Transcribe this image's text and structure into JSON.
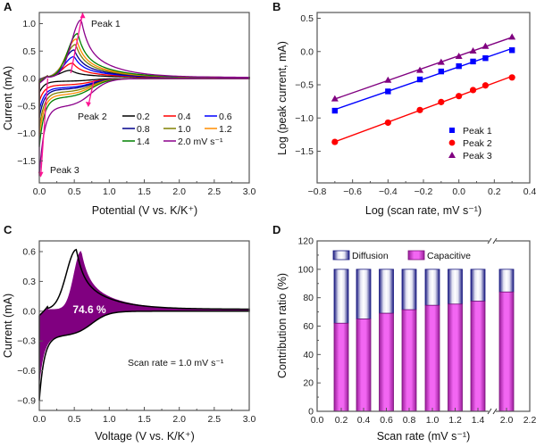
{
  "chart_data": [
    {
      "panel": "A",
      "type": "line",
      "title": "",
      "xlabel": "Potential (V vs. K/K⁺)",
      "ylabel": "Current (mA)",
      "xlim": [
        0.0,
        3.0
      ],
      "ylim": [
        -1.85,
        1.2
      ],
      "xticks": [
        "0.0",
        "0.5",
        "1.0",
        "1.5",
        "2.0",
        "2.5",
        "3.0"
      ],
      "yticks": [
        "1.0",
        "0.5",
        "0.0",
        "−0.5",
        "−1.0",
        "−1.5"
      ],
      "legend": {
        "placement": "middle-right",
        "columns": 3
      },
      "series": [
        {
          "name": "0.2",
          "color": "#000000",
          "anodic_peak": [
            0.45,
            0.13
          ],
          "cathodic_plateau": -0.05,
          "min_at_0": -0.26
        },
        {
          "name": "0.4",
          "color": "#ff0000",
          "anodic_peak": [
            0.48,
            0.26
          ],
          "cathodic_plateau": -0.12,
          "min_at_0": -0.42
        },
        {
          "name": "0.6",
          "color": "#0000ff",
          "anodic_peak": [
            0.5,
            0.38
          ],
          "cathodic_plateau": -0.17,
          "min_at_0": -0.58
        },
        {
          "name": "0.8",
          "color": "#00008b",
          "anodic_peak": [
            0.5,
            0.5
          ],
          "cathodic_plateau": -0.2,
          "min_at_0": -0.72
        },
        {
          "name": "1.0",
          "color": "#808000",
          "anodic_peak": [
            0.52,
            0.6
          ],
          "cathodic_plateau": -0.25,
          "min_at_0": -0.9
        },
        {
          "name": "1.2",
          "color": "#ff8c00",
          "anodic_peak": [
            0.53,
            0.7
          ],
          "cathodic_plateau": -0.3,
          "min_at_0": -1.05
        },
        {
          "name": "1.4",
          "color": "#008000",
          "anodic_peak": [
            0.55,
            0.8
          ],
          "cathodic_plateau": -0.35,
          "min_at_0": -1.25
        },
        {
          "name": "2.0 mV s⁻¹",
          "color": "#8b008b",
          "anodic_peak": [
            0.6,
            1.05
          ],
          "cathodic_plateau": -0.52,
          "min_at_0": -1.78
        }
      ],
      "annotations": [
        "Peak 1",
        "Peak 2",
        "Peak 3"
      ],
      "arrow_color": "#ff1493"
    },
    {
      "panel": "B",
      "type": "scatter",
      "title": "",
      "xlabel": "Log (scan rate, mV s⁻¹)",
      "ylabel": "Log (peak current, mA)",
      "xlim": [
        -0.8,
        0.4
      ],
      "ylim": [
        -1.95,
        0.6
      ],
      "xticks": [
        "−0.8",
        "−0.6",
        "−0.4",
        "−0.2",
        "0.0",
        "0.2",
        "0.4"
      ],
      "yticks": [
        "0.5",
        "0.0",
        "−0.5",
        "−1.0",
        "−1.5"
      ],
      "x": [
        -0.7,
        -0.4,
        -0.22,
        -0.1,
        0.0,
        0.08,
        0.15,
        0.3
      ],
      "series": [
        {
          "name": "Peak 1",
          "marker": "square",
          "color": "#0000ff",
          "values": [
            -0.89,
            -0.6,
            -0.42,
            -0.3,
            -0.22,
            -0.15,
            -0.1,
            0.02
          ]
        },
        {
          "name": "Peak 2",
          "marker": "circle",
          "color": "#ff0000",
          "values": [
            -1.36,
            -1.07,
            -0.88,
            -0.76,
            -0.67,
            -0.58,
            -0.51,
            -0.39
          ]
        },
        {
          "name": "Peak 3",
          "marker": "triangle",
          "color": "#800080",
          "values": [
            -0.71,
            -0.43,
            -0.28,
            -0.16,
            -0.07,
            0.01,
            0.08,
            0.22
          ]
        }
      ],
      "legend": {
        "placement": "bottom-right"
      }
    },
    {
      "panel": "C",
      "type": "area",
      "title": "",
      "xlabel": "Voltage (V vs. K/K⁺)",
      "ylabel": "Current (mA)",
      "xlim": [
        0.0,
        3.0
      ],
      "ylim": [
        -0.99,
        0.69
      ],
      "xticks": [
        "0.0",
        "0.5",
        "1.0",
        "1.5",
        "2.0",
        "2.5",
        "3.0"
      ],
      "yticks": [
        "0.6",
        "0.3",
        "0.0",
        "−0.3",
        "−0.6",
        "−0.9"
      ],
      "capacitive_fill_color": "#800080",
      "capacitive_percent_label": "74.6 %",
      "scan_rate_label": "Scan rate = 1.0 mV s⁻¹",
      "total_cv": {
        "anodic_peak": [
          0.53,
          0.6
        ],
        "cathodic_plateau": -0.25,
        "min_at_0": -0.9
      },
      "capacitive_cv": {
        "anodic_peak": [
          0.6,
          0.59
        ],
        "cathodic_plateau": -0.25,
        "min_at_0": -0.75
      }
    },
    {
      "panel": "D",
      "type": "bar",
      "stacked": true,
      "title": "",
      "xlabel": "Scan rate (mV s⁻¹)",
      "ylabel": "Contribution ratio (%)",
      "ylim": [
        0,
        120
      ],
      "xticks": [
        "0.0",
        "0.2",
        "0.4",
        "0.6",
        "0.8",
        "1.0",
        "1.2",
        "1.4",
        "2.0",
        "2.2"
      ],
      "yticks": [
        "0",
        "20",
        "40",
        "60",
        "80",
        "100",
        "120"
      ],
      "axis_break": "between 1.4 and 2.0",
      "categories": [
        "0.2",
        "0.4",
        "0.6",
        "0.8",
        "1.0",
        "1.2",
        "1.4",
        "2.0"
      ],
      "series": [
        {
          "name": "Capacitive",
          "color": "#ee55ee",
          "values": [
            62,
            65,
            69,
            71.5,
            74.6,
            75.5,
            77.5,
            84
          ]
        },
        {
          "name": "Diffusion",
          "color": "#e8e8f4",
          "values": [
            38,
            35,
            31,
            28.5,
            25.4,
            24.5,
            22.5,
            16
          ]
        }
      ],
      "legend": {
        "placement": "top-left",
        "entries": [
          "Diffusion",
          "Capacitive"
        ]
      }
    }
  ]
}
